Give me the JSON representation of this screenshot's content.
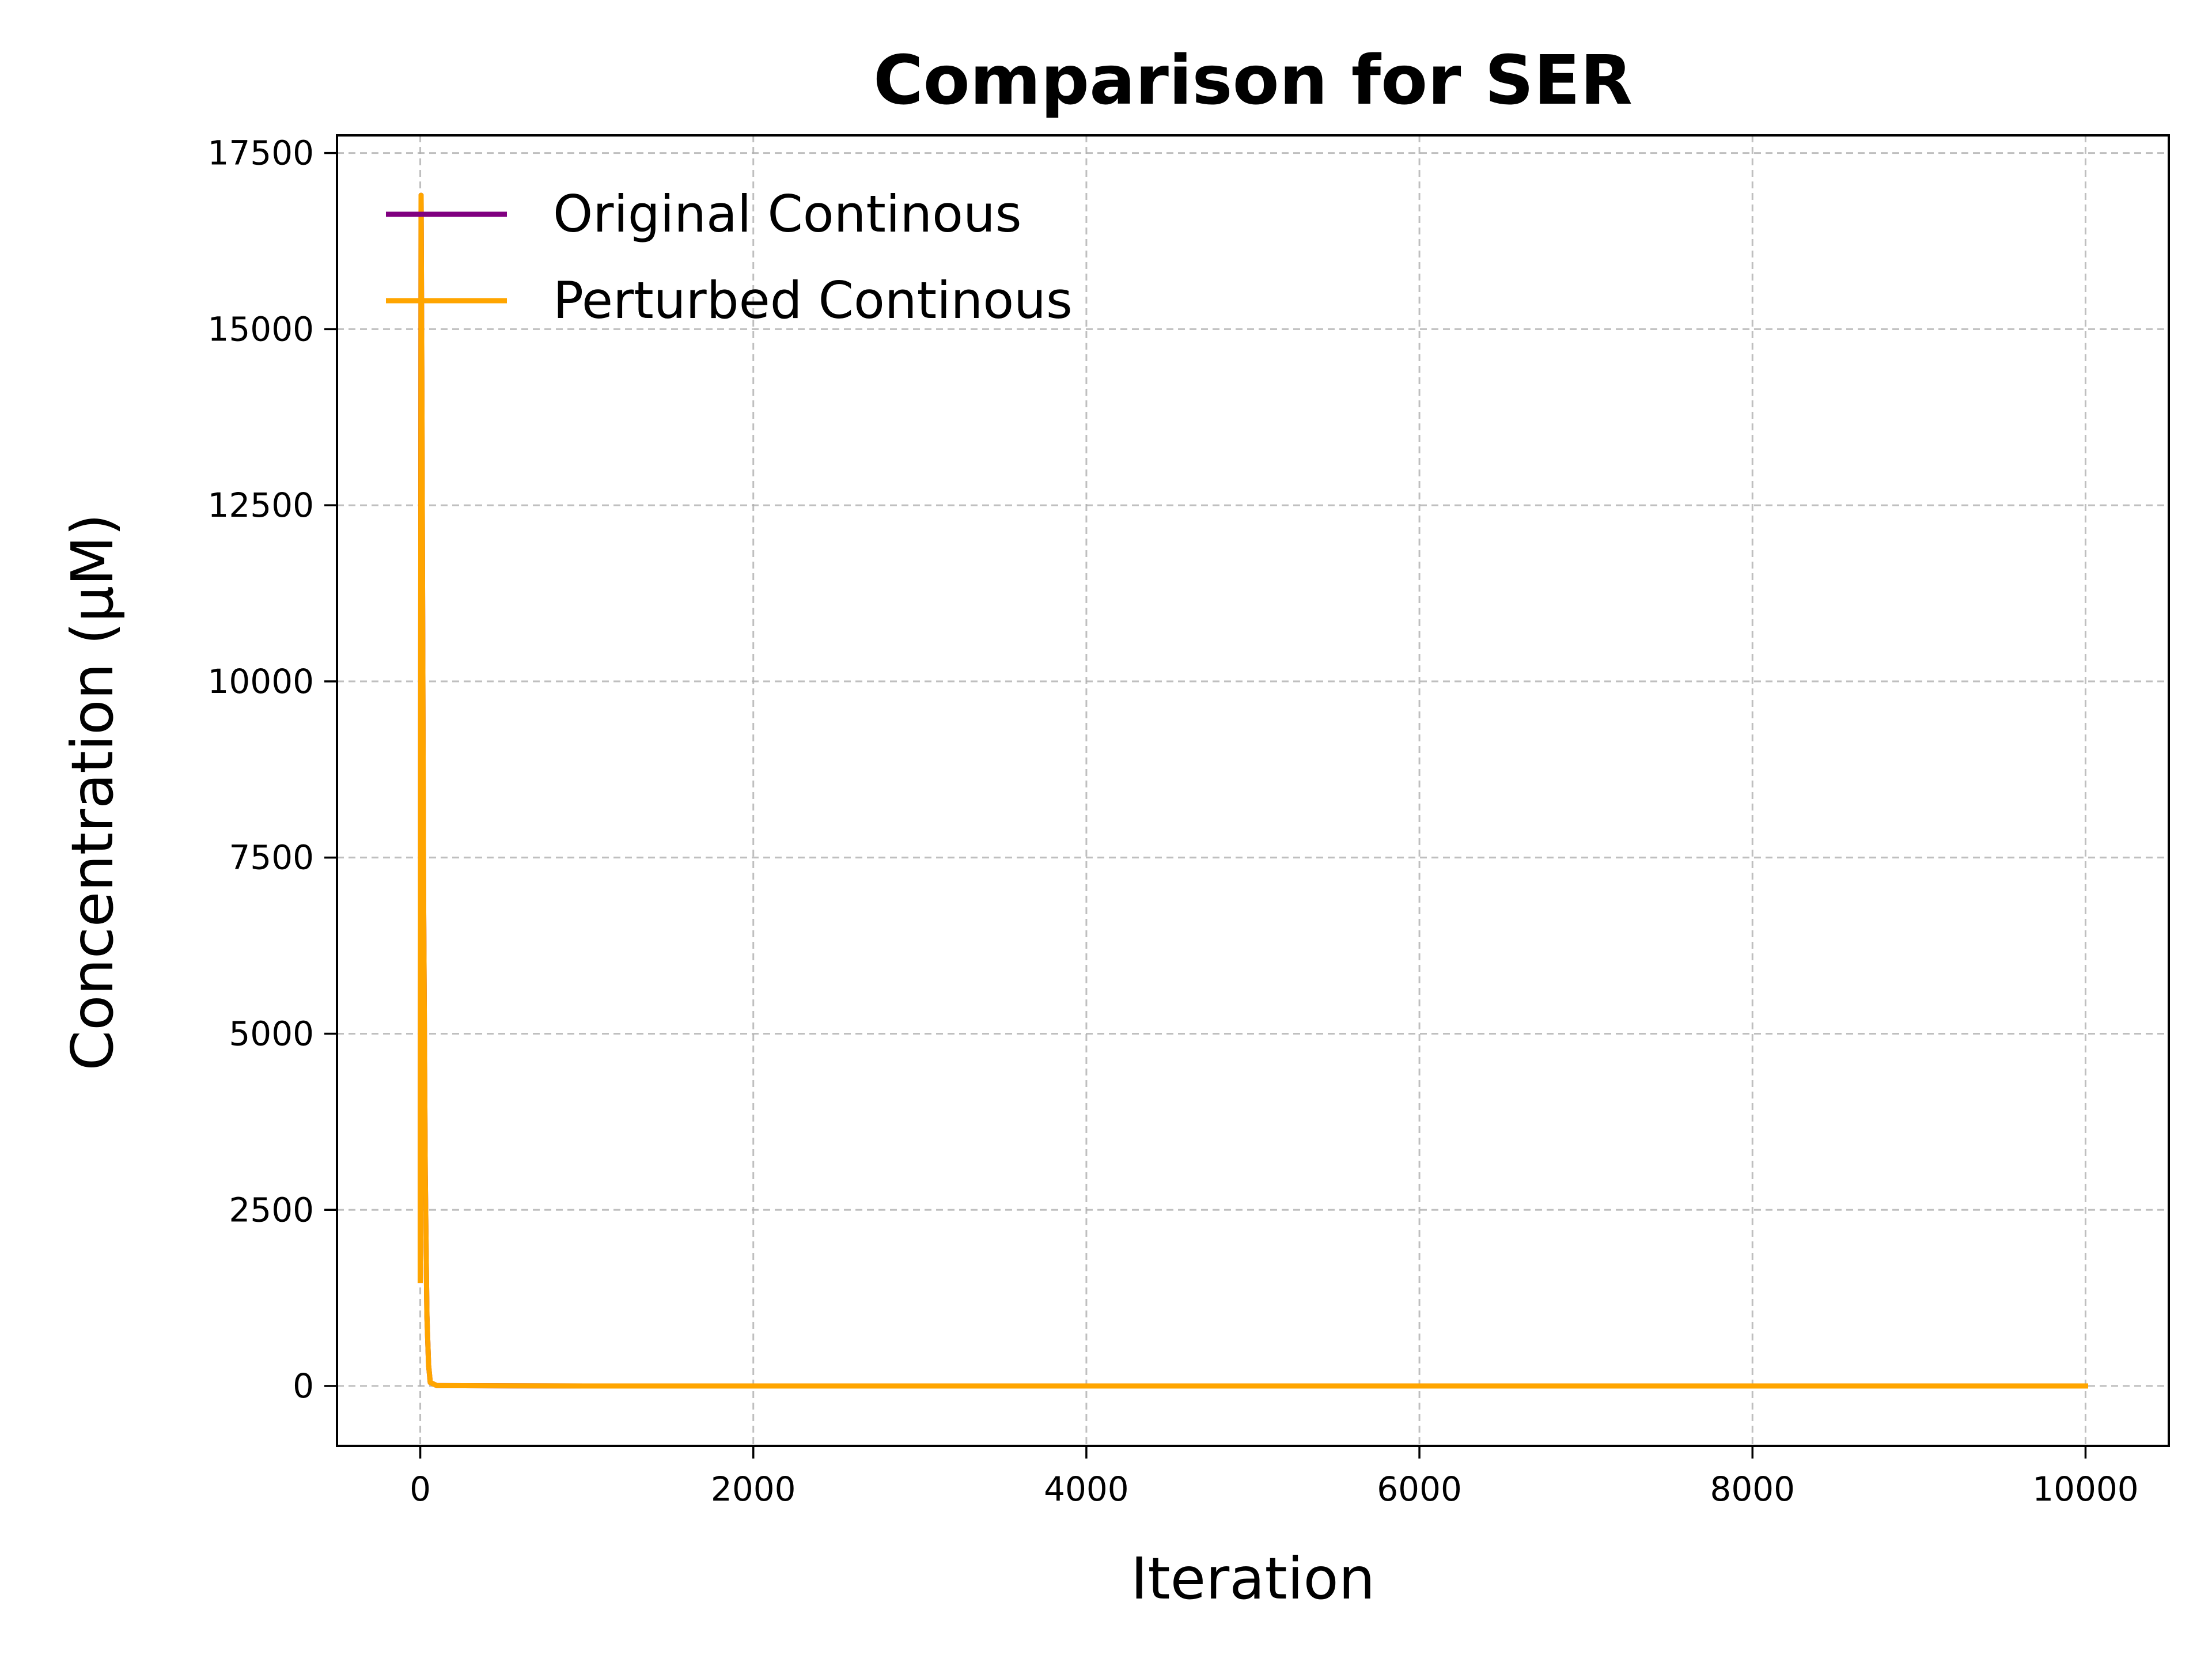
{
  "chart_data": {
    "type": "line",
    "title": "Comparison for SER",
    "xlabel": "Iteration",
    "ylabel": "Concentration (μM)",
    "xlim": [
      -500,
      10500
    ],
    "ylim": [
      -850,
      17750
    ],
    "xticks": [
      0,
      2000,
      4000,
      6000,
      8000,
      10000
    ],
    "yticks": [
      0,
      2500,
      5000,
      7500,
      10000,
      12500,
      15000,
      17500
    ],
    "grid": true,
    "legend_position": "top-left",
    "series": [
      {
        "name": "Original Continous",
        "color": "#800080",
        "x": [
          0,
          5,
          10,
          20,
          30,
          40,
          50,
          60,
          100,
          1000,
          2000,
          4000,
          6000,
          8000,
          10000
        ],
        "y": [
          1500,
          16900,
          14000,
          7000,
          3000,
          1000,
          300,
          50,
          5,
          0,
          0,
          0,
          0,
          0,
          0
        ]
      },
      {
        "name": "Perturbed Continous",
        "color": "#FFA500",
        "x": [
          0,
          5,
          10,
          20,
          30,
          40,
          50,
          60,
          100,
          1000,
          2000,
          4000,
          6000,
          8000,
          10000
        ],
        "y": [
          1500,
          16900,
          14000,
          7000,
          3000,
          1000,
          300,
          50,
          5,
          0,
          0,
          0,
          0,
          0,
          0
        ]
      }
    ]
  }
}
